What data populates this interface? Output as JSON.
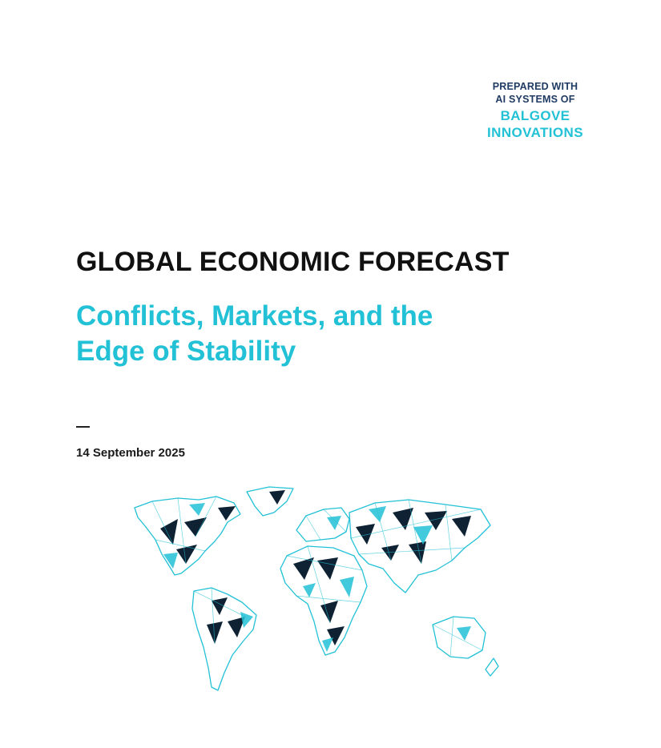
{
  "prepared": {
    "line1": "PREPARED WITH",
    "line2": "AI SYSTEMS OF",
    "line3": "BALGOVE",
    "line4": "INNOVATIONS"
  },
  "document": {
    "title": "GLOBAL ECONOMIC FORECAST",
    "subtitle_line1": "Conflicts, Markets, and the",
    "subtitle_line2": "Edge of Stability",
    "date": "14 September 2025"
  },
  "colors": {
    "accent": "#22c1d6",
    "navy": "#1f3a63",
    "map_dark": "#0e2233",
    "map_outline": "#22c1d6"
  },
  "icons": {
    "map": "world-map-low-poly-icon"
  }
}
